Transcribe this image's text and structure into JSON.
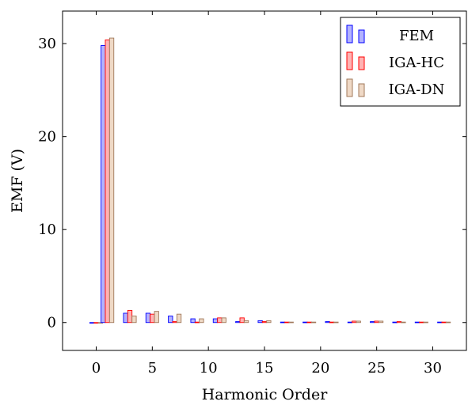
{
  "chart_data": {
    "type": "bar",
    "xlabel": "Harmonic Order",
    "ylabel": "EMF (V)",
    "x_range": [
      -3,
      33
    ],
    "y_range": [
      -3,
      33.5
    ],
    "x_ticks": [
      0,
      5,
      10,
      15,
      20,
      25,
      30
    ],
    "y_ticks": [
      0,
      10,
      20,
      30
    ],
    "grid": false,
    "legend_position": "top-right",
    "harmonics": [
      0,
      1,
      3,
      5,
      7,
      9,
      11,
      13,
      15,
      17,
      19,
      21,
      23,
      25,
      27,
      29,
      31
    ],
    "series": [
      {
        "name": "FEM",
        "fill": "#b3b3ff",
        "stroke": "#0000ff",
        "values": [
          0,
          29.8,
          1.0,
          1.0,
          0.7,
          0.4,
          0.4,
          0.1,
          0.2,
          0.05,
          0.05,
          0.1,
          0.05,
          0.1,
          0.05,
          0.05,
          0.05
        ]
      },
      {
        "name": "IGA-HC",
        "fill": "#ffb3b3",
        "stroke": "#ff0000",
        "values": [
          0,
          30.4,
          1.3,
          0.9,
          0.1,
          0.05,
          0.5,
          0.5,
          0.1,
          0.05,
          0.05,
          0.05,
          0.15,
          0.15,
          0.1,
          0.05,
          0.05
        ]
      },
      {
        "name": "IGA-DN",
        "fill": "#efd9c6",
        "stroke": "#a0785a",
        "values": [
          0,
          30.6,
          0.7,
          1.2,
          0.9,
          0.4,
          0.5,
          0.2,
          0.2,
          0.05,
          0.05,
          0.05,
          0.15,
          0.15,
          0.05,
          0.05,
          0.05
        ]
      }
    ]
  }
}
